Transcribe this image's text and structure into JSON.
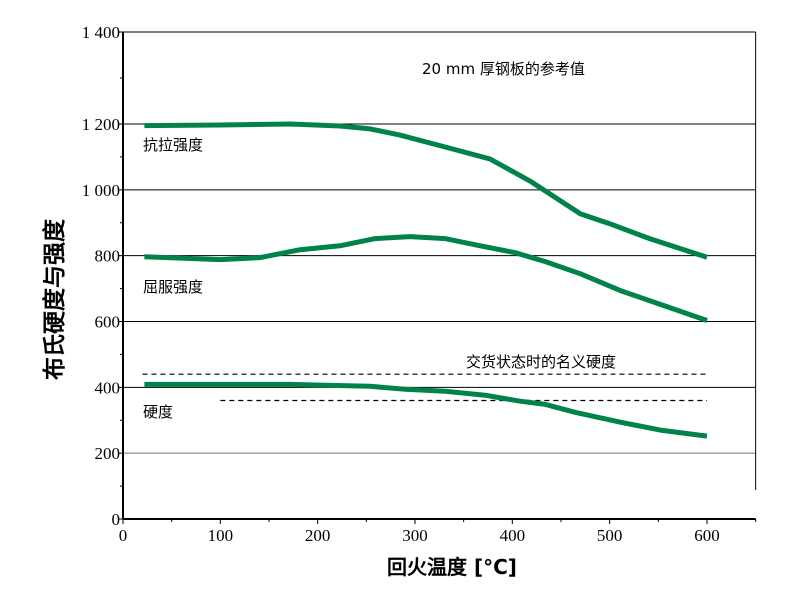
{
  "chart_data": {
    "type": "line",
    "title": "20 mm 厚钢板的参考值",
    "xlabel": "回火温度 [°C]",
    "ylabel": "布氏硬度与强度",
    "xlim": [
      0,
      650
    ],
    "ylim": [
      0,
      1400
    ],
    "xticks": [
      0,
      100,
      200,
      300,
      400,
      500,
      600
    ],
    "yticks": [
      0,
      200,
      400,
      600,
      800,
      1000,
      1200,
      1400
    ],
    "ytick_labels": [
      "0",
      "200",
      "400",
      "600",
      "800",
      "1 000",
      "1 200",
      "1 400"
    ],
    "grid": "horizontal",
    "line_color": "#00834a",
    "series": [
      {
        "name": "抗拉强度",
        "x": [
          22,
          100,
          172,
          223,
          254,
          284,
          331,
          377,
          418,
          470,
          500,
          541,
          600
        ],
        "y": [
          1195,
          1197,
          1200,
          1194,
          1185,
          1167,
          1130,
          1094,
          1027,
          927,
          897,
          852,
          795
        ]
      },
      {
        "name": "屈服强度",
        "x": [
          22,
          100,
          141,
          182,
          223,
          259,
          295,
          331,
          367,
          403,
          434,
          470,
          511,
          552,
          600
        ],
        "y": [
          797,
          788,
          794,
          818,
          830,
          852,
          858,
          852,
          830,
          809,
          782,
          745,
          694,
          652,
          603
        ]
      },
      {
        "name": "硬度",
        "x": [
          22,
          172,
          213,
          254,
          290,
          331,
          372,
          408,
          434,
          465,
          511,
          552,
          600
        ],
        "y": [
          409,
          409,
          406,
          403,
          394,
          388,
          376,
          358,
          348,
          324,
          294,
          270,
          252
        ]
      }
    ],
    "reference_lines": [
      {
        "name": "交货状态时的名义硬度",
        "y": 440,
        "x": [
          20,
          600
        ],
        "style": "dashed"
      },
      {
        "y": 360,
        "x": [
          100,
          600
        ],
        "style": "dashed"
      }
    ]
  }
}
